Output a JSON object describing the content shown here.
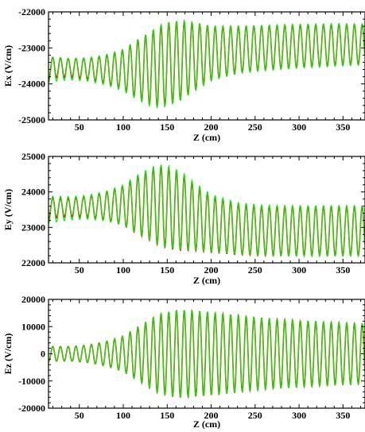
{
  "chart_data": [
    {
      "type": "line",
      "xlabel": "Z (cm)",
      "ylabel": "Ex (V/cm)",
      "xlim": [
        15,
        375
      ],
      "ylim": [
        -25000,
        -22000
      ],
      "xticks": [
        50,
        100,
        150,
        200,
        250,
        300,
        350
      ],
      "yticks": [
        -25000,
        -24000,
        -23000,
        -22000
      ],
      "grid": false,
      "legend": "none",
      "series": [
        {
          "color": "#ff0000",
          "wavelength": 8.8,
          "x": [
            15,
            25,
            40,
            60,
            80,
            100,
            115,
            130,
            140,
            150,
            165,
            180,
            200,
            230,
            260,
            300,
            340,
            375
          ],
          "center": [
            -23550,
            -23550,
            -23560,
            -23580,
            -23600,
            -23610,
            -23600,
            -23580,
            -23520,
            -23450,
            -23350,
            -23250,
            -23150,
            -23050,
            -23000,
            -22950,
            -22920,
            -22900
          ],
          "amplitude": [
            300,
            280,
            260,
            300,
            400,
            560,
            800,
            1000,
            1120,
            1150,
            1100,
            950,
            750,
            650,
            620,
            600,
            580,
            560
          ]
        },
        {
          "color": "#00ee00",
          "wavelength": 8.8,
          "x": [
            15,
            25,
            40,
            60,
            80,
            100,
            115,
            130,
            140,
            150,
            165,
            180,
            200,
            230,
            260,
            300,
            340,
            375
          ],
          "center": [
            -23600,
            -23590,
            -23590,
            -23600,
            -23610,
            -23620,
            -23610,
            -23590,
            -23520,
            -23450,
            -23350,
            -23250,
            -23150,
            -23050,
            -23000,
            -22950,
            -22920,
            -22900
          ],
          "amplitude": [
            350,
            330,
            300,
            330,
            420,
            580,
            810,
            1010,
            1130,
            1160,
            1110,
            960,
            760,
            660,
            630,
            610,
            590,
            570
          ]
        }
      ]
    },
    {
      "type": "line",
      "xlabel": "Z (cm)",
      "ylabel": "Ey (V/cm)",
      "xlim": [
        15,
        375
      ],
      "ylim": [
        22000,
        25000
      ],
      "xticks": [
        50,
        100,
        150,
        200,
        250,
        300,
        350
      ],
      "yticks": [
        22000,
        23000,
        24000,
        25000
      ],
      "grid": false,
      "legend": "none",
      "series": [
        {
          "color": "#ff0000",
          "wavelength": 8.8,
          "x": [
            15,
            25,
            40,
            60,
            80,
            100,
            115,
            130,
            140,
            150,
            165,
            180,
            200,
            230,
            260,
            300,
            340,
            375
          ],
          "center": [
            23550,
            23550,
            23560,
            23580,
            23600,
            23620,
            23630,
            23640,
            23620,
            23560,
            23450,
            23300,
            23100,
            22950,
            22900,
            22900,
            22900,
            22900
          ],
          "amplitude": [
            300,
            280,
            260,
            300,
            400,
            560,
            800,
            1000,
            1120,
            1150,
            1100,
            950,
            800,
            720,
            700,
            700,
            700,
            700
          ]
        },
        {
          "color": "#00ee00",
          "wavelength": 8.8,
          "x": [
            15,
            25,
            40,
            60,
            80,
            100,
            115,
            130,
            140,
            150,
            165,
            180,
            200,
            230,
            260,
            300,
            340,
            375
          ],
          "center": [
            23500,
            23520,
            23540,
            23570,
            23600,
            23630,
            23650,
            23660,
            23640,
            23580,
            23480,
            23330,
            23120,
            22970,
            22920,
            22900,
            22900,
            22900
          ],
          "amplitude": [
            380,
            360,
            330,
            340,
            420,
            570,
            810,
            1010,
            1130,
            1160,
            1110,
            960,
            810,
            730,
            710,
            710,
            710,
            710
          ]
        }
      ]
    },
    {
      "type": "line",
      "xlabel": "Z (cm)",
      "ylabel": "Ez (V/cm)",
      "xlim": [
        15,
        375
      ],
      "ylim": [
        -20000,
        20000
      ],
      "xticks": [
        50,
        100,
        150,
        200,
        250,
        300,
        350
      ],
      "yticks": [
        -20000,
        -10000,
        0,
        10000,
        20000
      ],
      "grid": false,
      "legend": "none",
      "series": [
        {
          "color": "#ff0000",
          "wavelength": 8.8,
          "x": [
            15,
            40,
            60,
            80,
            100,
            120,
            140,
            160,
            170,
            190,
            220,
            260,
            300,
            340,
            375
          ],
          "center": [
            0,
            0,
            0,
            0,
            0,
            0,
            0,
            0,
            0,
            0,
            0,
            0,
            0,
            0,
            0
          ],
          "amplitude": [
            2700,
            2700,
            3200,
            4500,
            6500,
            10500,
            14500,
            16000,
            16000,
            15500,
            14500,
            13000,
            12200,
            11500,
            11000
          ]
        },
        {
          "color": "#00ee00",
          "wavelength": 8.8,
          "x": [
            15,
            40,
            60,
            80,
            100,
            120,
            140,
            160,
            170,
            190,
            220,
            260,
            300,
            340,
            375
          ],
          "center": [
            0,
            0,
            0,
            0,
            0,
            0,
            0,
            0,
            0,
            0,
            0,
            0,
            0,
            0,
            0
          ],
          "amplitude": [
            2700,
            2700,
            3200,
            4500,
            6500,
            10500,
            14500,
            16000,
            16000,
            15500,
            14500,
            13000,
            12200,
            11500,
            11000
          ]
        }
      ]
    }
  ]
}
